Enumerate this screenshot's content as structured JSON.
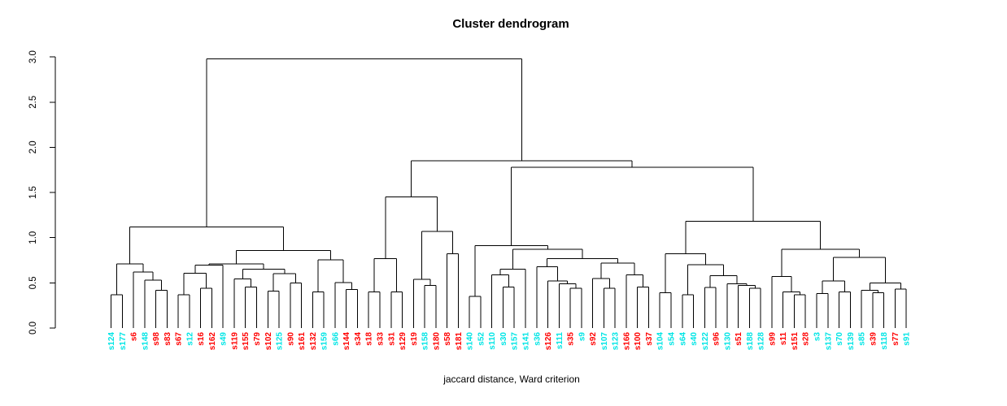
{
  "title": "Cluster dendrogram",
  "xlabel": "jaccard distance, Ward criterion",
  "colors": {
    "cyan": "#00E5E5",
    "red": "#FF0000",
    "line": "#000000",
    "text": "#000000"
  },
  "y_axis": {
    "ticks": [
      "0.0",
      "0.5",
      "1.0",
      "1.5",
      "2.0",
      "2.5",
      "3.0"
    ],
    "min": 0,
    "max": 3
  },
  "chart_data": {
    "type": "dendrogram",
    "title": "Cluster dendrogram",
    "xlabel": "jaccard distance, Ward criterion",
    "ylim": [
      0,
      3
    ],
    "grid": false,
    "leaves": [
      {
        "label": "s124",
        "color": "cyan"
      },
      {
        "label": "s177",
        "color": "cyan"
      },
      {
        "label": "s6",
        "color": "red"
      },
      {
        "label": "s148",
        "color": "cyan"
      },
      {
        "label": "s98",
        "color": "red"
      },
      {
        "label": "s83",
        "color": "red"
      },
      {
        "label": "s67",
        "color": "red"
      },
      {
        "label": "s12",
        "color": "cyan"
      },
      {
        "label": "s16",
        "color": "red"
      },
      {
        "label": "s162",
        "color": "red"
      },
      {
        "label": "s49",
        "color": "cyan"
      },
      {
        "label": "s119",
        "color": "red"
      },
      {
        "label": "s155",
        "color": "red"
      },
      {
        "label": "s79",
        "color": "red"
      },
      {
        "label": "s102",
        "color": "red"
      },
      {
        "label": "s125",
        "color": "cyan"
      },
      {
        "label": "s90",
        "color": "red"
      },
      {
        "label": "s161",
        "color": "red"
      },
      {
        "label": "s132",
        "color": "red"
      },
      {
        "label": "s159",
        "color": "cyan"
      },
      {
        "label": "s66",
        "color": "cyan"
      },
      {
        "label": "s144",
        "color": "red"
      },
      {
        "label": "s34",
        "color": "red"
      },
      {
        "label": "s18",
        "color": "red"
      },
      {
        "label": "s33",
        "color": "red"
      },
      {
        "label": "s31",
        "color": "red"
      },
      {
        "label": "s129",
        "color": "red"
      },
      {
        "label": "s19",
        "color": "red"
      },
      {
        "label": "s158",
        "color": "cyan"
      },
      {
        "label": "s180",
        "color": "red"
      },
      {
        "label": "s58",
        "color": "red"
      },
      {
        "label": "s181",
        "color": "red"
      },
      {
        "label": "s140",
        "color": "cyan"
      },
      {
        "label": "s52",
        "color": "cyan"
      },
      {
        "label": "s110",
        "color": "cyan"
      },
      {
        "label": "s30",
        "color": "cyan"
      },
      {
        "label": "s157",
        "color": "cyan"
      },
      {
        "label": "s141",
        "color": "cyan"
      },
      {
        "label": "s36",
        "color": "cyan"
      },
      {
        "label": "s126",
        "color": "red"
      },
      {
        "label": "s111",
        "color": "cyan"
      },
      {
        "label": "s35",
        "color": "red"
      },
      {
        "label": "s9",
        "color": "cyan"
      },
      {
        "label": "s92",
        "color": "red"
      },
      {
        "label": "s107",
        "color": "cyan"
      },
      {
        "label": "s123",
        "color": "cyan"
      },
      {
        "label": "s166",
        "color": "red"
      },
      {
        "label": "s100",
        "color": "red"
      },
      {
        "label": "s37",
        "color": "red"
      },
      {
        "label": "s104",
        "color": "cyan"
      },
      {
        "label": "s54",
        "color": "cyan"
      },
      {
        "label": "s64",
        "color": "cyan"
      },
      {
        "label": "s40",
        "color": "cyan"
      },
      {
        "label": "s122",
        "color": "cyan"
      },
      {
        "label": "s96",
        "color": "red"
      },
      {
        "label": "s130",
        "color": "cyan"
      },
      {
        "label": "s51",
        "color": "red"
      },
      {
        "label": "s188",
        "color": "cyan"
      },
      {
        "label": "s128",
        "color": "cyan"
      },
      {
        "label": "s99",
        "color": "red"
      },
      {
        "label": "s11",
        "color": "red"
      },
      {
        "label": "s151",
        "color": "red"
      },
      {
        "label": "s28",
        "color": "red"
      },
      {
        "label": "s3",
        "color": "cyan"
      },
      {
        "label": "s137",
        "color": "cyan"
      },
      {
        "label": "s70",
        "color": "cyan"
      },
      {
        "label": "s139",
        "color": "cyan"
      },
      {
        "label": "s85",
        "color": "cyan"
      },
      {
        "label": "s39",
        "color": "red"
      },
      {
        "label": "s118",
        "color": "cyan"
      },
      {
        "label": "s77",
        "color": "red"
      },
      {
        "label": "s91",
        "color": "cyan"
      }
    ],
    "tree": [
      2.98,
      [
        1.12,
        [
          0.71,
          [
            0.37,
            "s124",
            "s177"
          ],
          [
            0.62,
            "s6",
            [
              0.53,
              "s148",
              [
                0.42,
                "s98",
                "s83"
              ]
            ]
          ]
        ],
        [
          0.86,
          [
            0.71,
            [
              0.695,
              [
                0.605,
                [
                  0.37,
                  "s67",
                  "s12"
                ],
                [
                  0.44,
                  "s16",
                  "s162"
                ]
              ],
              "s49"
            ],
            [
              0.65,
              [
                0.545,
                "s119",
                [
                  0.455,
                  "s155",
                  "s79"
                ]
              ],
              [
                0.6,
                [
                  0.41,
                  "s102",
                  "s125"
                ],
                [
                  0.5,
                  "s90",
                  "s161"
                ]
              ]
            ]
          ],
          [
            0.755,
            [
              0.4,
              "s132",
              "s159"
            ],
            [
              0.505,
              "s66",
              [
                0.425,
                "s144",
                "s34"
              ]
            ]
          ]
        ]
      ],
      [
        1.85,
        [
          1.45,
          [
            0.77,
            [
              0.4,
              "s18",
              "s33"
            ],
            [
              0.4,
              "s31",
              "s129"
            ]
          ],
          [
            1.07,
            [
              0.54,
              "s19",
              [
                0.47,
                "s158",
                "s180"
              ]
            ],
            [
              0.82,
              "s58",
              "s181"
            ]
          ]
        ],
        [
          1.78,
          [
            0.91,
            [
              0.35,
              "s140",
              "s52"
            ],
            [
              0.87,
              [
                0.65,
                [
                  0.59,
                  "s110",
                  [
                    0.455,
                    "s30",
                    "s157"
                  ]
                ],
                "s141"
              ],
              [
                0.77,
                [
                  0.68,
                  "s36",
                  [
                    0.52,
                    "s126",
                    [
                      0.49,
                      "s111",
                      [
                        0.44,
                        "s35",
                        "s9"
                      ]
                    ]
                  ]
                ],
                [
                  0.72,
                  [
                    0.55,
                    "s92",
                    [
                      0.44,
                      "s107",
                      "s123"
                    ]
                  ],
                  [
                    0.59,
                    "s166",
                    [
                      0.455,
                      "s100",
                      "s37"
                    ]
                  ]
                ]
              ]
            ]
          ],
          [
            1.18,
            [
              0.82,
              [
                0.39,
                "s104",
                "s54"
              ],
              [
                0.7,
                [
                  0.37,
                  "s64",
                  "s40"
                ],
                [
                  0.58,
                  [
                    0.45,
                    "s122",
                    "s96"
                  ],
                  [
                    0.49,
                    "s130",
                    [
                      0.47,
                      "s51",
                      [
                        0.44,
                        "s188",
                        "s128"
                      ]
                    ]
                  ]
                ]
              ]
            ],
            [
              0.87,
              [
                0.57,
                "s99",
                [
                  0.4,
                  "s11",
                  [
                    0.37,
                    "s151",
                    "s28"
                  ]
                ]
              ],
              [
                0.78,
                [
                  0.52,
                  [
                    0.38,
                    "s3",
                    "s137"
                  ],
                  [
                    0.4,
                    "s70",
                    "s139"
                  ]
                ],
                [
                  0.5,
                  [
                    0.42,
                    "s85",
                    [
                      0.39,
                      "s39",
                      "s118"
                    ]
                  ],
                  [
                    0.43,
                    "s77",
                    "s91"
                  ]
                ]
              ]
            ]
          ]
        ]
      ]
    ]
  }
}
